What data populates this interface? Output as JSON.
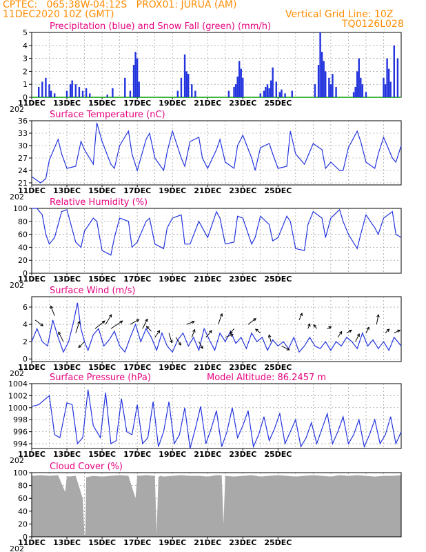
{
  "header": {
    "line1_left": "CPTEC:   065:38W-04:12S   PROX01: JURUA (AM)",
    "line2_left": "11DEC2020 10Z (GMT)",
    "line2_right": "Vertical Grid Line: 10Z",
    "line3_right": "TQ0126L028"
  },
  "x_axis": {
    "labels": [
      "11DEC",
      "13DEC",
      "15DEC",
      "17DEC",
      "19DEC",
      "21DEC",
      "23DEC",
      "25DEC"
    ],
    "year_stub": "202"
  },
  "colors": {
    "line": "#2233dd",
    "title": "#e6007e",
    "header": "#ff8c00",
    "snow": "#00a000",
    "cloud": "#a9a9a9"
  },
  "chart_data": [
    {
      "id": "precip",
      "type": "bar",
      "title": "Precipitation (blue) and Snow Fall (green) (mm/h)",
      "ylim": [
        0,
        5
      ],
      "yticks": [
        0,
        1,
        2,
        3,
        4,
        5
      ],
      "x": [
        0.4,
        0.6,
        0.8,
        1.0,
        1.1,
        1.3,
        2.0,
        2.2,
        2.3,
        2.5,
        2.7,
        2.9,
        3.1,
        3.3,
        4.3,
        4.6,
        5.3,
        5.6,
        5.8,
        5.9,
        6.0,
        6.1,
        8.3,
        8.5,
        8.7,
        8.8,
        8.9,
        9.1,
        9.3,
        11.2,
        11.5,
        11.6,
        11.7,
        11.8,
        11.9,
        12.0,
        13.0,
        13.2,
        13.3,
        13.4,
        13.5,
        13.6,
        13.7,
        13.9,
        14.1,
        14.2,
        14.4,
        14.8,
        16.1,
        16.3,
        16.4,
        16.5,
        16.6,
        16.7,
        16.9,
        17.0,
        17.1,
        17.3,
        18.3,
        18.4,
        18.5,
        18.6,
        18.7,
        18.8,
        19.0,
        20.0,
        20.1,
        20.2,
        20.3,
        20.4,
        20.6,
        20.8
      ],
      "values": [
        0.8,
        1.2,
        1.5,
        1.0,
        0.5,
        0.3,
        0.5,
        1.0,
        1.3,
        1.0,
        0.8,
        0.5,
        0.7,
        0.3,
        0.2,
        0.7,
        1.5,
        0.5,
        2.5,
        3.5,
        3.0,
        1.2,
        0.5,
        1.5,
        3.3,
        2.0,
        1.8,
        1.0,
        0.5,
        0.5,
        0.8,
        1.0,
        1.6,
        2.8,
        2.2,
        1.5,
        0.3,
        0.5,
        0.8,
        1.0,
        0.7,
        1.3,
        2.3,
        1.2,
        0.4,
        0.6,
        0.3,
        0.5,
        1.0,
        2.5,
        5.0,
        3.5,
        2.8,
        2.0,
        1.5,
        1.0,
        1.8,
        0.8,
        0.4,
        0.8,
        2.0,
        3.0,
        1.5,
        1.0,
        0.4,
        1.5,
        1.0,
        3.0,
        2.2,
        1.2,
        4.0,
        3.0
      ],
      "snow_values_zero": 0
    },
    {
      "id": "temp",
      "type": "line",
      "title": "Surface Temperature (nC)",
      "ylim": [
        20.5,
        36
      ],
      "yticks": [
        21,
        24,
        27,
        30,
        33,
        36
      ],
      "x": [
        0,
        0.5,
        0.8,
        1.0,
        1.5,
        1.7,
        2.0,
        2.5,
        2.8,
        3.0,
        3.5,
        3.7,
        4.0,
        4.5,
        4.7,
        5.0,
        5.5,
        5.7,
        6.0,
        6.5,
        6.7,
        7.0,
        7.5,
        7.7,
        8.0,
        8.5,
        8.7,
        9.0,
        9.5,
        9.7,
        10.0,
        10.5,
        10.7,
        11.0,
        11.5,
        11.7,
        12.0,
        12.5,
        12.7,
        13.0,
        13.5,
        13.7,
        14.0,
        14.5,
        14.7,
        15.0,
        15.5,
        15.7,
        16.0,
        16.5,
        16.7,
        17.0,
        17.5,
        17.7,
        18.0,
        18.5,
        18.7,
        19.0,
        19.5,
        19.7,
        20.0,
        20.5,
        20.7,
        21.0
      ],
      "values": [
        22.5,
        21.0,
        22.0,
        26.5,
        31.5,
        28.0,
        24.5,
        25.0,
        31.0,
        29.0,
        25.5,
        35.5,
        31.0,
        25.5,
        24.5,
        30.0,
        33.5,
        28.0,
        24.0,
        31.5,
        33.0,
        27.0,
        24.0,
        28.5,
        33.5,
        27.0,
        25.0,
        31.0,
        32.0,
        27.0,
        24.5,
        29.0,
        31.5,
        26.0,
        24.5,
        30.0,
        32.5,
        27.0,
        24.0,
        29.5,
        30.5,
        28.0,
        24.5,
        25.0,
        33.5,
        28.0,
        25.5,
        27.5,
        30.5,
        29.0,
        24.5,
        26.0,
        24.0,
        24.0,
        29.5,
        33.5,
        31.0,
        26.0,
        24.5,
        28.0,
        32.0,
        27.0,
        26.0,
        30.0
      ],
      "ylabel_values_shown": true
    },
    {
      "id": "rh",
      "type": "line",
      "title": "Relative Humidity (%)",
      "ylim": [
        0,
        100
      ],
      "yticks": [
        0,
        20,
        40,
        60,
        80,
        100
      ],
      "x": [
        0,
        0.3,
        0.6,
        0.8,
        1.0,
        1.3,
        1.7,
        2.0,
        2.5,
        2.8,
        3.0,
        3.5,
        3.7,
        4.0,
        4.5,
        4.7,
        5.0,
        5.5,
        5.7,
        6.0,
        6.5,
        6.7,
        7.0,
        7.5,
        7.7,
        8.0,
        8.5,
        8.7,
        9.0,
        9.5,
        9.7,
        10.0,
        10.5,
        10.7,
        11.0,
        11.5,
        11.7,
        12.0,
        12.5,
        12.7,
        13.0,
        13.5,
        13.7,
        14.0,
        14.5,
        14.7,
        15.0,
        15.5,
        15.7,
        16.0,
        16.5,
        16.7,
        17.0,
        17.5,
        17.7,
        18.0,
        18.5,
        18.7,
        19.0,
        19.5,
        19.7,
        20.0,
        20.5,
        20.7,
        21.0
      ],
      "values": [
        100,
        100,
        90,
        60,
        45,
        55,
        95,
        98,
        48,
        40,
        65,
        85,
        80,
        35,
        28,
        55,
        85,
        80,
        40,
        48,
        80,
        85,
        45,
        38,
        70,
        85,
        90,
        45,
        45,
        80,
        70,
        55,
        95,
        85,
        45,
        48,
        88,
        85,
        45,
        55,
        88,
        75,
        50,
        55,
        88,
        80,
        38,
        35,
        75,
        95,
        85,
        55,
        85,
        98,
        80,
        60,
        38,
        60,
        90,
        70,
        60,
        85,
        95,
        60,
        55
      ]
    },
    {
      "id": "wind",
      "type": "line",
      "title": "Surface Wind (m/s)",
      "ylim": [
        -0.3,
        7.2
      ],
      "yticks": [
        0,
        2,
        4,
        6
      ],
      "x": [
        0,
        0.3,
        0.6,
        0.9,
        1.2,
        1.5,
        1.8,
        2.1,
        2.4,
        2.6,
        2.8,
        3.0,
        3.2,
        3.5,
        3.8,
        4.1,
        4.4,
        4.7,
        5.0,
        5.3,
        5.6,
        5.9,
        6.2,
        6.5,
        6.8,
        7.1,
        7.4,
        7.7,
        8.0,
        8.3,
        8.6,
        8.9,
        9.2,
        9.5,
        9.8,
        10.1,
        10.4,
        10.7,
        11.0,
        11.3,
        11.6,
        11.9,
        12.2,
        12.5,
        12.8,
        13.1,
        13.4,
        13.7,
        14.0,
        14.3,
        14.6,
        14.9,
        15.2,
        15.5,
        15.8,
        16.1,
        16.4,
        16.7,
        17.0,
        17.3,
        17.6,
        17.9,
        18.2,
        18.5,
        18.8,
        19.1,
        19.4,
        19.7,
        20.0,
        20.3,
        20.6,
        21.0
      ],
      "values": [
        2.0,
        3.5,
        2.0,
        1.5,
        4.5,
        2.5,
        0.8,
        2.0,
        4.5,
        6.5,
        3.5,
        2.0,
        1.0,
        2.8,
        3.5,
        1.5,
        2.2,
        3.2,
        1.5,
        0.8,
        2.5,
        4.0,
        2.0,
        3.5,
        2.5,
        1.0,
        3.0,
        1.5,
        0.8,
        2.2,
        3.0,
        1.5,
        2.5,
        1.0,
        3.5,
        2.2,
        1.0,
        3.0,
        2.0,
        3.2,
        1.8,
        2.5,
        1.2,
        3.0,
        2.0,
        2.5,
        1.0,
        2.2,
        1.5,
        2.0,
        1.2,
        2.5,
        0.8,
        1.5,
        2.5,
        1.5,
        1.2,
        2.0,
        1.0,
        2.0,
        1.5,
        2.5,
        2.0,
        1.2,
        3.0,
        1.5,
        2.2,
        1.2,
        2.0,
        1.0,
        2.5,
        1.5
      ],
      "arrows": [
        {
          "x": 0.2,
          "y": 4.5,
          "u": 0.8,
          "v": -0.6
        },
        {
          "x": 1.3,
          "y": 5.0,
          "u": -0.4,
          "v": 1.0
        },
        {
          "x": 1.8,
          "y": 2.0,
          "u": -0.5,
          "v": 1.0
        },
        {
          "x": 2.5,
          "y": 3.0,
          "u": 0.4,
          "v": 1.2
        },
        {
          "x": 3.0,
          "y": 2.0,
          "u": -0.6,
          "v": -0.6
        },
        {
          "x": 3.6,
          "y": 3.5,
          "u": 1.0,
          "v": 0.8
        },
        {
          "x": 4.2,
          "y": 4.0,
          "u": 0.6,
          "v": 1.0
        },
        {
          "x": 4.5,
          "y": 3.5,
          "u": 1.2,
          "v": 0.8
        },
        {
          "x": 5.6,
          "y": 4.0,
          "u": 0.9,
          "v": 0.5
        },
        {
          "x": 6.3,
          "y": 3.5,
          "u": 0.5,
          "v": 1.0
        },
        {
          "x": 6.8,
          "y": 3.2,
          "u": -0.5,
          "v": 0.5
        },
        {
          "x": 7.0,
          "y": 2.5,
          "u": 0.5,
          "v": 0.7
        },
        {
          "x": 7.8,
          "y": 3.0,
          "u": 0.3,
          "v": -1.0
        },
        {
          "x": 8.2,
          "y": 2.5,
          "u": 0.5,
          "v": -0.8
        },
        {
          "x": 8.8,
          "y": 4.0,
          "u": 0.8,
          "v": 0.3
        },
        {
          "x": 9.1,
          "y": 2.5,
          "u": 0.3,
          "v": 0.8
        },
        {
          "x": 9.5,
          "y": 2.0,
          "u": 0.4,
          "v": -0.7
        },
        {
          "x": 9.9,
          "y": 2.5,
          "u": 0.6,
          "v": 0.7
        },
        {
          "x": 10.6,
          "y": 4.0,
          "u": 0.4,
          "v": 1.1
        },
        {
          "x": 11.0,
          "y": 2.5,
          "u": 0.8,
          "v": 0.3
        },
        {
          "x": 11.5,
          "y": 3.5,
          "u": -0.4,
          "v": -0.5
        },
        {
          "x": 12.3,
          "y": 4.0,
          "u": 0.8,
          "v": 0.6
        },
        {
          "x": 13.0,
          "y": 3.0,
          "u": -0.5,
          "v": 0.4
        },
        {
          "x": 13.6,
          "y": 2.0,
          "u": -0.2,
          "v": 0.7
        },
        {
          "x": 14.2,
          "y": 1.5,
          "u": 0.8,
          "v": -0.4
        },
        {
          "x": 15.2,
          "y": 4.5,
          "u": 0.3,
          "v": 0.7
        },
        {
          "x": 15.7,
          "y": 3.5,
          "u": 0.2,
          "v": 0.5
        },
        {
          "x": 16.2,
          "y": 3.5,
          "u": -0.3,
          "v": 0.4
        },
        {
          "x": 16.8,
          "y": 3.5,
          "u": 0.4,
          "v": 0.2
        },
        {
          "x": 17.4,
          "y": 2.5,
          "u": 0.4,
          "v": 0.6
        },
        {
          "x": 17.9,
          "y": 3.0,
          "u": 0.5,
          "v": 0.3
        },
        {
          "x": 18.4,
          "y": 2.0,
          "u": 0.4,
          "v": 0.8
        },
        {
          "x": 19.0,
          "y": 3.0,
          "u": 0.3,
          "v": 0.6
        },
        {
          "x": 19.6,
          "y": 4.0,
          "u": 0.2,
          "v": 1.0
        },
        {
          "x": 20.1,
          "y": 3.0,
          "u": 0.4,
          "v": 0.4
        },
        {
          "x": 20.6,
          "y": 3.0,
          "u": 0.6,
          "v": 0.3
        }
      ]
    },
    {
      "id": "pres",
      "type": "line",
      "title": "Surface Pressure (hPa)",
      "annotation": "Model Altitude: 86.2457 m",
      "ylim": [
        993.2,
        1004
      ],
      "yticks": [
        994,
        996,
        998,
        1000,
        1002,
        1004
      ],
      "x": [
        0,
        0.4,
        0.8,
        1.0,
        1.3,
        1.6,
        2.0,
        2.3,
        2.6,
        2.9,
        3.2,
        3.5,
        3.9,
        4.2,
        4.5,
        4.8,
        5.1,
        5.4,
        5.7,
        6.0,
        6.3,
        6.6,
        6.9,
        7.2,
        7.5,
        7.8,
        8.1,
        8.4,
        8.7,
        9.0,
        9.3,
        9.6,
        9.9,
        10.2,
        10.5,
        10.8,
        11.1,
        11.4,
        11.7,
        12.0,
        12.3,
        12.6,
        12.9,
        13.2,
        13.5,
        13.8,
        14.1,
        14.4,
        14.7,
        15.0,
        15.3,
        15.6,
        15.9,
        16.2,
        16.5,
        16.8,
        17.1,
        17.4,
        17.7,
        18.0,
        18.3,
        18.6,
        18.9,
        19.2,
        19.5,
        19.8,
        20.1,
        20.4,
        20.7,
        21.0
      ],
      "values": [
        1000.2,
        1000.5,
        1001.5,
        1002.0,
        995.5,
        995.0,
        1000.8,
        1000.5,
        994.0,
        995.0,
        1003.0,
        997.0,
        995.0,
        1002.5,
        994.0,
        994.5,
        1001.5,
        996.0,
        995.5,
        1000.5,
        994.0,
        995.0,
        1001.0,
        993.5,
        996.0,
        1001.0,
        994.0,
        995.5,
        1000.0,
        993.0,
        996.5,
        1000.2,
        994.0,
        996.5,
        999.5,
        993.5,
        996.0,
        1000.0,
        995.0,
        997.0,
        999.5,
        993.5,
        995.5,
        998.5,
        994.5,
        996.5,
        999.0,
        994.0,
        996.0,
        998.0,
        993.5,
        995.0,
        997.5,
        994.0,
        996.5,
        999.0,
        994.0,
        996.0,
        998.5,
        994.0,
        995.5,
        998.0,
        993.5,
        995.5,
        998.0,
        994.0,
        995.5,
        998.5,
        994.0,
        996.0
      ]
    },
    {
      "id": "cloud",
      "type": "area",
      "title": "Cloud Cover (%)",
      "ylim": [
        0,
        100
      ],
      "yticks": [
        0,
        20,
        40,
        60,
        80,
        100
      ],
      "x": [
        0,
        0.5,
        1.0,
        1.5,
        1.9,
        2.0,
        2.1,
        2.5,
        2.9,
        3.0,
        3.05,
        3.1,
        3.5,
        4.0,
        4.5,
        5.0,
        5.5,
        5.9,
        6.0,
        6.1,
        6.5,
        7.0,
        7.1,
        7.2,
        7.3,
        7.5,
        8.0,
        8.5,
        9.0,
        9.5,
        10.0,
        10.5,
        10.8,
        10.9,
        11.0,
        11.5,
        12.0,
        12.5,
        13.0,
        13.5,
        14.0,
        14.5,
        15.0,
        15.5,
        16.0,
        16.5,
        17.0,
        17.5,
        18.0,
        18.5,
        19.0,
        19.5,
        20.0,
        20.5,
        21.0
      ],
      "values": [
        95,
        96,
        95,
        96,
        70,
        95,
        94,
        95,
        60,
        2,
        5,
        93,
        95,
        94,
        95,
        96,
        95,
        60,
        96,
        95,
        96,
        95,
        5,
        93,
        95,
        94,
        95,
        96,
        95,
        95,
        94,
        96,
        96,
        20,
        95,
        94,
        95,
        96,
        94,
        95,
        96,
        95,
        94,
        95,
        96,
        95,
        94,
        96,
        95,
        96,
        95,
        94,
        95,
        95,
        96
      ]
    }
  ]
}
